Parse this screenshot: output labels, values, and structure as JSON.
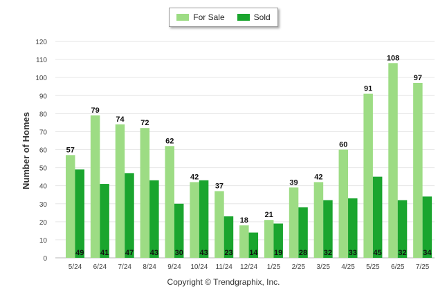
{
  "chart_data": {
    "type": "bar",
    "categories": [
      "5/24",
      "6/24",
      "7/24",
      "8/24",
      "9/24",
      "10/24",
      "11/24",
      "12/24",
      "1/25",
      "2/25",
      "3/25",
      "4/25",
      "5/25",
      "6/25",
      "7/25"
    ],
    "series": [
      {
        "name": "For Sale",
        "color": "#9ddc84",
        "values": [
          57,
          79,
          74,
          72,
          62,
          42,
          37,
          18,
          21,
          39,
          42,
          60,
          91,
          108,
          97
        ]
      },
      {
        "name": "Sold",
        "color": "#1aa52e",
        "values": [
          49,
          41,
          47,
          43,
          30,
          43,
          23,
          14,
          19,
          28,
          32,
          33,
          45,
          32,
          34
        ]
      }
    ],
    "ylabel": "Number of Homes",
    "xlabel": "",
    "ylim": [
      0,
      120
    ],
    "yticks": [
      0,
      10,
      20,
      30,
      40,
      50,
      60,
      70,
      80,
      90,
      100,
      110,
      120
    ],
    "grid": true,
    "legend": "top-center"
  },
  "legend": {
    "for_sale": "For Sale",
    "sold": "Sold"
  },
  "footer": {
    "copyright": "Copyright © Trendgraphix, Inc."
  }
}
